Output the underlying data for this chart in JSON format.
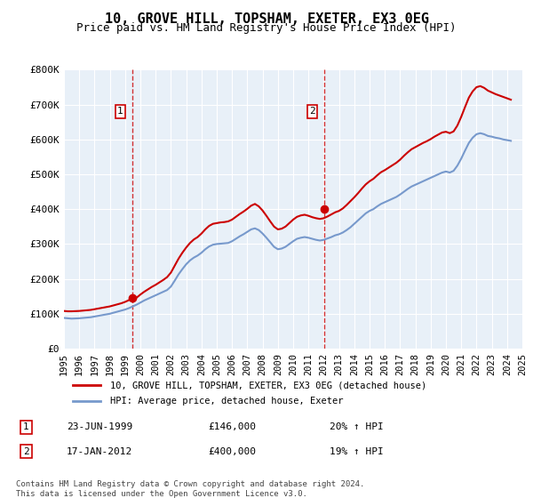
{
  "title": "10, GROVE HILL, TOPSHAM, EXETER, EX3 0EG",
  "subtitle": "Price paid vs. HM Land Registry's House Price Index (HPI)",
  "ylabel": "",
  "xlabel": "",
  "background_color": "#e8f0f8",
  "plot_bg": "#e8f0f8",
  "line1_color": "#cc0000",
  "line2_color": "#7799cc",
  "ylim": [
    0,
    800000
  ],
  "yticks": [
    0,
    100000,
    200000,
    300000,
    400000,
    500000,
    600000,
    700000,
    800000
  ],
  "ytick_labels": [
    "£0",
    "£100K",
    "£200K",
    "£300K",
    "£400K",
    "£500K",
    "£600K",
    "£700K",
    "£800K"
  ],
  "legend_line1": "10, GROVE HILL, TOPSHAM, EXETER, EX3 0EG (detached house)",
  "legend_line2": "HPI: Average price, detached house, Exeter",
  "sale1_date": "23-JUN-1999",
  "sale1_price": 146000,
  "sale1_label": "1",
  "sale1_note": "20% ↑ HPI",
  "sale2_date": "17-JAN-2012",
  "sale2_price": 400000,
  "sale2_label": "2",
  "sale2_note": "19% ↑ HPI",
  "footer": "Contains HM Land Registry data © Crown copyright and database right 2024.\nThis data is licensed under the Open Government Licence v3.0.",
  "hpi_years": [
    1995.0,
    1995.25,
    1995.5,
    1995.75,
    1996.0,
    1996.25,
    1996.5,
    1996.75,
    1997.0,
    1997.25,
    1997.5,
    1997.75,
    1998.0,
    1998.25,
    1998.5,
    1998.75,
    1999.0,
    1999.25,
    1999.5,
    1999.75,
    2000.0,
    2000.25,
    2000.5,
    2000.75,
    2001.0,
    2001.25,
    2001.5,
    2001.75,
    2002.0,
    2002.25,
    2002.5,
    2002.75,
    2003.0,
    2003.25,
    2003.5,
    2003.75,
    2004.0,
    2004.25,
    2004.5,
    2004.75,
    2005.0,
    2005.25,
    2005.5,
    2005.75,
    2006.0,
    2006.25,
    2006.5,
    2006.75,
    2007.0,
    2007.25,
    2007.5,
    2007.75,
    2008.0,
    2008.25,
    2008.5,
    2008.75,
    2009.0,
    2009.25,
    2009.5,
    2009.75,
    2010.0,
    2010.25,
    2010.5,
    2010.75,
    2011.0,
    2011.25,
    2011.5,
    2011.75,
    2012.0,
    2012.25,
    2012.5,
    2012.75,
    2013.0,
    2013.25,
    2013.5,
    2013.75,
    2014.0,
    2014.25,
    2014.5,
    2014.75,
    2015.0,
    2015.25,
    2015.5,
    2015.75,
    2016.0,
    2016.25,
    2016.5,
    2016.75,
    2017.0,
    2017.25,
    2017.5,
    2017.75,
    2018.0,
    2018.25,
    2018.5,
    2018.75,
    2019.0,
    2019.25,
    2019.5,
    2019.75,
    2020.0,
    2020.25,
    2020.5,
    2020.75,
    2021.0,
    2021.25,
    2021.5,
    2021.75,
    2022.0,
    2022.25,
    2022.5,
    2022.75,
    2023.0,
    2023.25,
    2023.5,
    2023.75,
    2024.0,
    2024.25
  ],
  "hpi_values": [
    88000,
    87000,
    86000,
    86500,
    87000,
    88000,
    89000,
    90000,
    92000,
    94000,
    96000,
    98000,
    100000,
    103000,
    106000,
    109000,
    112000,
    116000,
    121000,
    126000,
    132000,
    138000,
    143000,
    148000,
    153000,
    158000,
    163000,
    168000,
    178000,
    195000,
    213000,
    228000,
    242000,
    253000,
    261000,
    267000,
    275000,
    285000,
    293000,
    298000,
    300000,
    301000,
    302000,
    303000,
    308000,
    315000,
    322000,
    328000,
    335000,
    342000,
    345000,
    340000,
    330000,
    318000,
    305000,
    292000,
    285000,
    287000,
    292000,
    300000,
    308000,
    315000,
    318000,
    320000,
    318000,
    315000,
    312000,
    310000,
    312000,
    316000,
    320000,
    325000,
    328000,
    333000,
    340000,
    348000,
    358000,
    368000,
    378000,
    388000,
    395000,
    400000,
    408000,
    415000,
    420000,
    425000,
    430000,
    435000,
    442000,
    450000,
    458000,
    465000,
    470000,
    475000,
    480000,
    485000,
    490000,
    495000,
    500000,
    505000,
    508000,
    505000,
    510000,
    525000,
    545000,
    568000,
    590000,
    605000,
    615000,
    618000,
    615000,
    610000,
    608000,
    605000,
    603000,
    600000,
    598000,
    596000
  ],
  "property_years": [
    1995.0,
    1995.25,
    1995.5,
    1995.75,
    1996.0,
    1996.25,
    1996.5,
    1996.75,
    1997.0,
    1997.25,
    1997.5,
    1997.75,
    1998.0,
    1998.25,
    1998.5,
    1998.75,
    1999.0,
    1999.25,
    1999.5,
    1999.75,
    2000.0,
    2000.25,
    2000.5,
    2000.75,
    2001.0,
    2001.25,
    2001.5,
    2001.75,
    2002.0,
    2002.25,
    2002.5,
    2002.75,
    2003.0,
    2003.25,
    2003.5,
    2003.75,
    2004.0,
    2004.25,
    2004.5,
    2004.75,
    2005.0,
    2005.25,
    2005.5,
    2005.75,
    2006.0,
    2006.25,
    2006.5,
    2006.75,
    2007.0,
    2007.25,
    2007.5,
    2007.75,
    2008.0,
    2008.25,
    2008.5,
    2008.75,
    2009.0,
    2009.25,
    2009.5,
    2009.75,
    2010.0,
    2010.25,
    2010.5,
    2010.75,
    2011.0,
    2011.25,
    2011.5,
    2011.75,
    2012.0,
    2012.25,
    2012.5,
    2012.75,
    2013.0,
    2013.25,
    2013.5,
    2013.75,
    2014.0,
    2014.25,
    2014.5,
    2014.75,
    2015.0,
    2015.25,
    2015.5,
    2015.75,
    2016.0,
    2016.25,
    2016.5,
    2016.75,
    2017.0,
    2017.25,
    2017.5,
    2017.75,
    2018.0,
    2018.25,
    2018.5,
    2018.75,
    2019.0,
    2019.25,
    2019.5,
    2019.75,
    2020.0,
    2020.25,
    2020.5,
    2020.75,
    2021.0,
    2021.25,
    2021.5,
    2021.75,
    2022.0,
    2022.25,
    2022.5,
    2022.75,
    2023.0,
    2023.25,
    2023.5,
    2023.75,
    2024.0,
    2024.25
  ],
  "property_values": [
    108000,
    107000,
    107000,
    107500,
    108000,
    109000,
    110000,
    111000,
    113000,
    115000,
    117000,
    119000,
    121000,
    124000,
    127000,
    130000,
    134000,
    139000,
    144000,
    146000,
    155000,
    163000,
    170000,
    177000,
    183000,
    190000,
    197000,
    205000,
    218000,
    238000,
    258000,
    275000,
    290000,
    303000,
    313000,
    320000,
    330000,
    342000,
    352000,
    358000,
    360000,
    362000,
    363000,
    365000,
    370000,
    378000,
    386000,
    393000,
    401000,
    410000,
    415000,
    408000,
    396000,
    381000,
    365000,
    350000,
    342000,
    344000,
    350000,
    360000,
    370000,
    378000,
    382000,
    384000,
    381000,
    377000,
    374000,
    372000,
    374000,
    379000,
    385000,
    391000,
    395000,
    402000,
    412000,
    423000,
    434000,
    446000,
    459000,
    471000,
    480000,
    487000,
    497000,
    506000,
    512000,
    519000,
    526000,
    533000,
    542000,
    553000,
    563000,
    572000,
    578000,
    584000,
    590000,
    595000,
    601000,
    608000,
    614000,
    620000,
    622000,
    618000,
    623000,
    640000,
    665000,
    693000,
    720000,
    738000,
    750000,
    753000,
    748000,
    740000,
    735000,
    730000,
    726000,
    722000,
    718000,
    714000
  ],
  "sale1_x": 1999.47,
  "sale2_x": 2012.04,
  "xtick_years": [
    1995,
    1996,
    1997,
    1998,
    1999,
    2000,
    2001,
    2002,
    2003,
    2004,
    2005,
    2006,
    2007,
    2008,
    2009,
    2010,
    2011,
    2012,
    2013,
    2014,
    2015,
    2016,
    2017,
    2018,
    2019,
    2020,
    2021,
    2022,
    2023,
    2024,
    2025
  ]
}
